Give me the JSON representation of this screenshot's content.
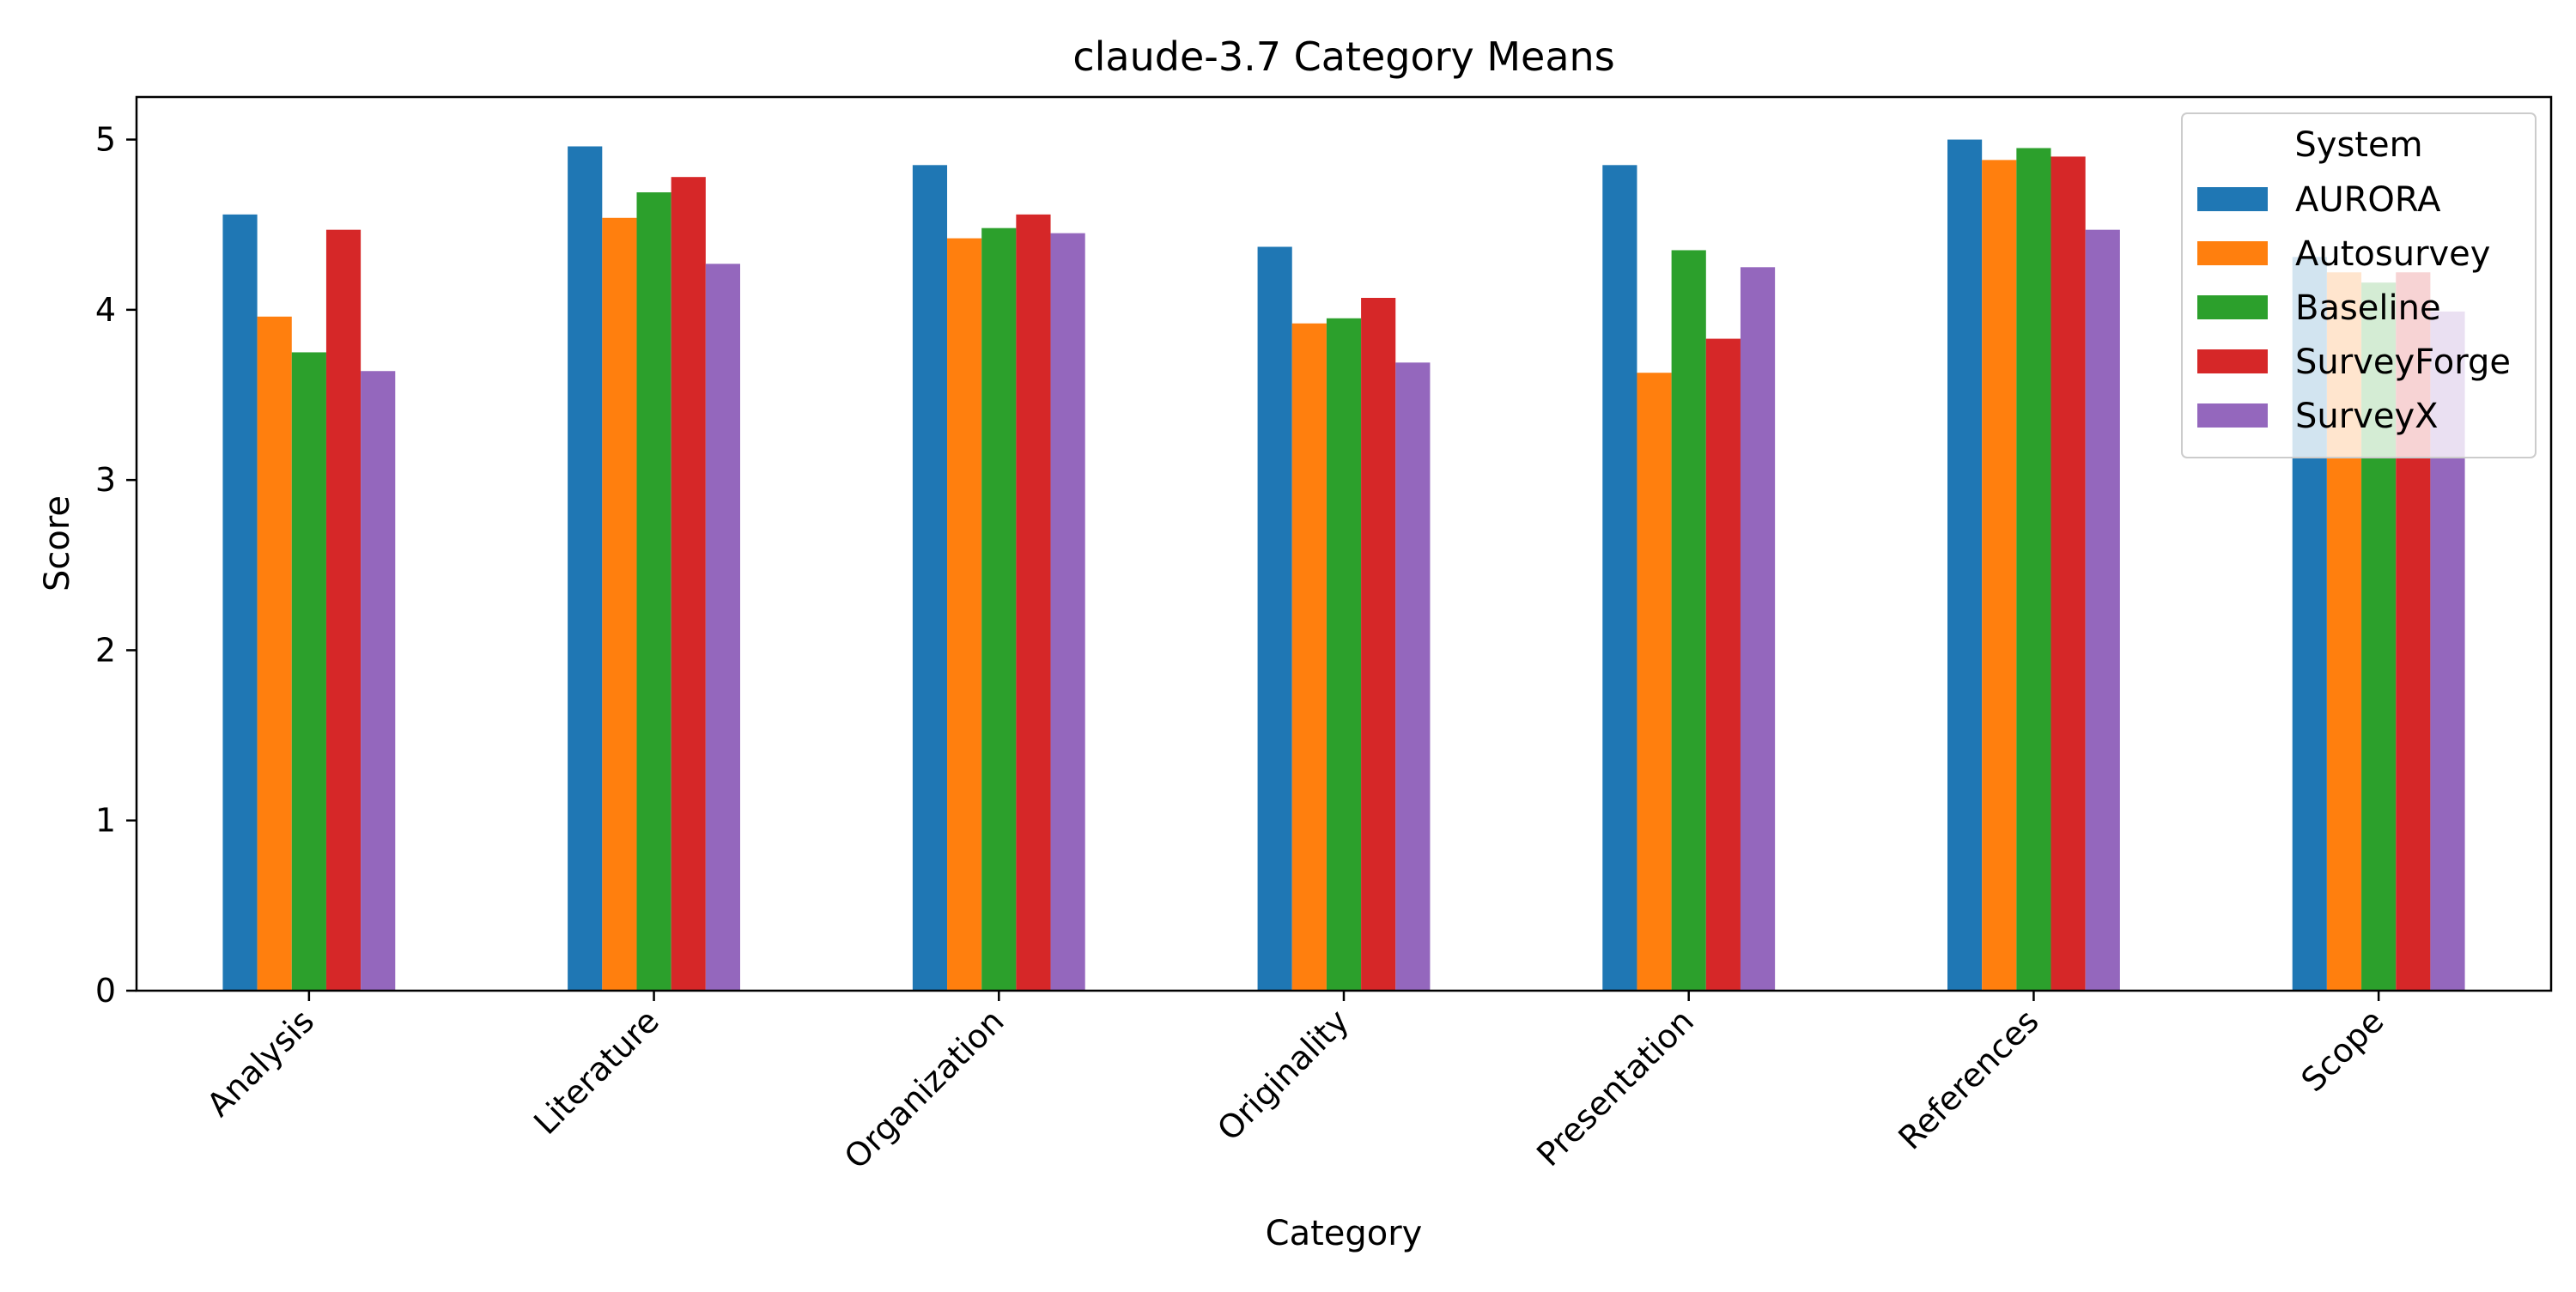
{
  "chart_data": {
    "type": "bar",
    "title": "claude-3.7 Category Means",
    "xlabel": "Category",
    "ylabel": "Score",
    "ylim": [
      0,
      5.25
    ],
    "yticks": [
      0,
      1,
      2,
      3,
      4,
      5
    ],
    "grid": false,
    "legend": {
      "title": "System",
      "placement": "top-right"
    },
    "categories": [
      "Analysis",
      "Literature",
      "Organization",
      "Originality",
      "Presentation",
      "References",
      "Scope"
    ],
    "series": [
      {
        "name": "AURORA",
        "color": "#1f77b4",
        "values": [
          4.56,
          4.96,
          4.85,
          4.37,
          4.85,
          5.0,
          4.31
        ]
      },
      {
        "name": "Autosurvey",
        "color": "#ff7f0e",
        "values": [
          3.96,
          4.54,
          4.42,
          3.92,
          3.63,
          4.88,
          4.22
        ]
      },
      {
        "name": "Baseline",
        "color": "#2ca02c",
        "values": [
          3.75,
          4.69,
          4.48,
          3.95,
          4.35,
          4.95,
          4.16
        ]
      },
      {
        "name": "SurveyForge",
        "color": "#d62728",
        "values": [
          4.47,
          4.78,
          4.56,
          4.07,
          3.83,
          4.9,
          4.22
        ]
      },
      {
        "name": "SurveyX",
        "color": "#9467bd",
        "values": [
          3.64,
          4.27,
          4.45,
          3.69,
          4.25,
          4.47,
          3.99
        ]
      }
    ]
  }
}
